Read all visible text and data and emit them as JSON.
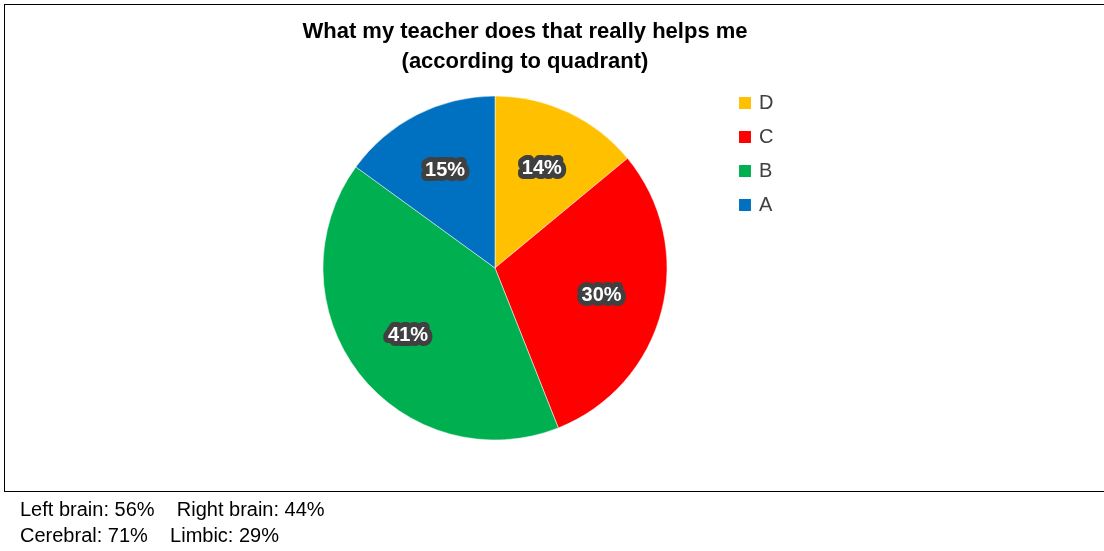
{
  "chart_data": {
    "type": "pie",
    "title": "What my teacher does that really helps me\n(according to quadrant)",
    "categories": [
      "D",
      "C",
      "B",
      "A"
    ],
    "values": [
      14,
      30,
      41,
      15
    ],
    "colors": [
      "#ffc000",
      "#ff0000",
      "#00b050",
      "#0070c0"
    ],
    "value_labels": [
      "14%",
      "30%",
      "41%",
      "15%"
    ],
    "legend": "right",
    "annotations": [
      "Left brain: 56%    Right brain: 44%",
      "Cerebral: 71%    Limbic: 29%"
    ]
  }
}
